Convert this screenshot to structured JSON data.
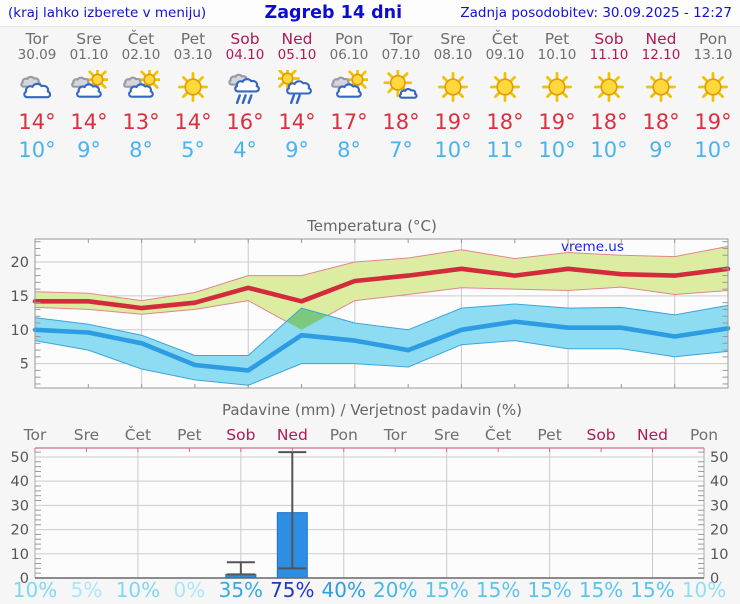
{
  "header": {
    "note": "(kraj lahko izberete v meniju)",
    "title": "Zagreb 14 dni",
    "updated": "Zadnja posodobitev: 30.09.2025 - 12:27"
  },
  "watermark": "vreme.us",
  "colors": {
    "weekend": "#ae1a56",
    "weekday": "#6e6e6e",
    "tmax_text": "#dc2f3e",
    "tmin_text": "#49b3ef",
    "header_blue": "#1212cf",
    "tmax_line": "#d42b3c",
    "tmin_line": "#2d9ce2",
    "tmax_band": "#dceda2",
    "tmin_band": "#8edcf2",
    "band_overlap": "#7cc87c",
    "bar_fill": "#2e8ee3",
    "grid": "#cbcbcb",
    "axis_text": "#555555",
    "precip_top_border": "#cc7088"
  },
  "days": [
    {
      "name": "Tor",
      "date": "30.09",
      "weekend": false,
      "icon": "cloudy",
      "tmax": 14,
      "tmin": 10,
      "prob": 10,
      "prob_color": "#7ed8f3"
    },
    {
      "name": "Sre",
      "date": "01.10",
      "weekend": false,
      "icon": "sun-cloud",
      "tmax": 14,
      "tmin": 9,
      "prob": 5,
      "prob_color": "#a9e7f8"
    },
    {
      "name": "Čet",
      "date": "02.10",
      "weekend": false,
      "icon": "sun-cloud",
      "tmax": 13,
      "tmin": 8,
      "prob": 10,
      "prob_color": "#7ed8f3"
    },
    {
      "name": "Pet",
      "date": "03.10",
      "weekend": false,
      "icon": "sunny",
      "tmax": 14,
      "tmin": 5,
      "prob": 0,
      "prob_color": "#a9e7f8"
    },
    {
      "name": "Sob",
      "date": "04.10",
      "weekend": true,
      "icon": "rain",
      "tmax": 16,
      "tmin": 4,
      "prob": 35,
      "prob_color": "#35a9e5"
    },
    {
      "name": "Ned",
      "date": "05.10",
      "weekend": true,
      "icon": "sun-rain",
      "tmax": 14,
      "tmin": 9,
      "prob": 75,
      "prob_color": "#2137c6"
    },
    {
      "name": "Pon",
      "date": "06.10",
      "weekend": false,
      "icon": "sun-cloud",
      "tmax": 17,
      "tmin": 8,
      "prob": 40,
      "prob_color": "#2d9ee2"
    },
    {
      "name": "Tor",
      "date": "07.10",
      "weekend": false,
      "icon": "sun-small-cloud",
      "tmax": 18,
      "tmin": 7,
      "prob": 20,
      "prob_color": "#45b9eb"
    },
    {
      "name": "Sre",
      "date": "08.10",
      "weekend": false,
      "icon": "sunny",
      "tmax": 19,
      "tmin": 10,
      "prob": 15,
      "prob_color": "#58c5ef"
    },
    {
      "name": "Čet",
      "date": "09.10",
      "weekend": false,
      "icon": "sunny",
      "tmax": 18,
      "tmin": 11,
      "prob": 15,
      "prob_color": "#58c5ef"
    },
    {
      "name": "Pet",
      "date": "10.10",
      "weekend": false,
      "icon": "sunny",
      "tmax": 19,
      "tmin": 10,
      "prob": 15,
      "prob_color": "#58c5ef"
    },
    {
      "name": "Sob",
      "date": "11.10",
      "weekend": true,
      "icon": "sunny",
      "tmax": 18,
      "tmin": 10,
      "prob": 15,
      "prob_color": "#58c5ef"
    },
    {
      "name": "Ned",
      "date": "12.10",
      "weekend": true,
      "icon": "sunny",
      "tmax": 18,
      "tmin": 9,
      "prob": 15,
      "prob_color": "#58c5ef"
    },
    {
      "name": "Pon",
      "date": "13.10",
      "weekend": false,
      "icon": "sunny",
      "tmax": 19,
      "tmin": 10,
      "prob": 10,
      "prob_color": "#8fdff5"
    }
  ],
  "chart_data": [
    {
      "type": "line",
      "title": "Temperatura (°C)",
      "ylim": [
        1.4,
        23.4
      ],
      "yticks": [
        5,
        10,
        15,
        20
      ],
      "grid": true,
      "legend": "none",
      "categories": [
        "Tor 30.09",
        "Sre 01.10",
        "Čet 02.10",
        "Pet 03.10",
        "Sob 04.10",
        "Ned 05.10",
        "Pon 06.10",
        "Tor 07.10",
        "Sre 08.10",
        "Čet 09.10",
        "Pet 10.10",
        "Sob 11.10",
        "Ned 12.10",
        "Pon 13.10"
      ],
      "series": [
        {
          "name": "tmax",
          "color": "#d42b3c",
          "values": [
            14.2,
            14.2,
            13.2,
            14,
            16.2,
            14.2,
            17.2,
            18,
            19,
            18,
            19,
            18.2,
            18,
            19
          ]
        },
        {
          "name": "tmax_range_upper",
          "color": "#dceda2",
          "values": [
            15.6,
            15.4,
            14.3,
            15.5,
            18,
            18,
            20,
            20.6,
            21.8,
            20.5,
            21.4,
            21,
            20.8,
            22.3
          ]
        },
        {
          "name": "tmax_range_lower",
          "color": "#dceda2",
          "values": [
            13.3,
            13,
            12.3,
            13,
            14.3,
            10,
            14.3,
            15.2,
            16.2,
            16,
            15.8,
            16.3,
            15.2,
            15.8
          ]
        },
        {
          "name": "tmin",
          "color": "#2d9ce2",
          "values": [
            10,
            9.6,
            8,
            4.8,
            4,
            9.2,
            8.4,
            7,
            10,
            11.2,
            10.3,
            10.3,
            9,
            10.2
          ]
        },
        {
          "name": "tmin_range_upper",
          "color": "#8edcf2",
          "values": [
            11.8,
            10.8,
            9.2,
            6.2,
            6.2,
            13.2,
            11,
            10,
            13.2,
            13.8,
            13.2,
            13.3,
            12.2,
            13.6
          ]
        },
        {
          "name": "tmin_range_lower",
          "color": "#8edcf2",
          "values": [
            8.4,
            7,
            4.2,
            2.6,
            1.8,
            5,
            5,
            4.5,
            7.8,
            8.4,
            7.2,
            7.2,
            6,
            6.8
          ]
        }
      ]
    },
    {
      "type": "bar",
      "title": "Padavine (mm) / Verjetnost padavin (%)",
      "ylim": [
        0,
        53.7
      ],
      "yticks": [
        0,
        10,
        20,
        30,
        40,
        50
      ],
      "grid": true,
      "categories": [
        "Tor 30.09",
        "Sre 01.10",
        "Čet 02.10",
        "Pet 03.10",
        "Sob 04.10",
        "Ned 05.10",
        "Pon 06.10",
        "Tor 07.10",
        "Sre 08.10",
        "Čet 09.10",
        "Pet 10.10",
        "Sob 11.10",
        "Ned 12.10",
        "Pon 13.10"
      ],
      "bars_mm": [
        0,
        0,
        0,
        0,
        1.5,
        27,
        0,
        0,
        0,
        0,
        0,
        0,
        0,
        0
      ],
      "whisker_low": [
        null,
        null,
        null,
        null,
        1.5,
        4,
        null,
        null,
        null,
        null,
        null,
        null,
        null,
        null
      ],
      "whisker_high": [
        null,
        null,
        null,
        null,
        6.5,
        52,
        null,
        null,
        null,
        null,
        null,
        null,
        null,
        null
      ],
      "probabilities_pct": [
        10,
        5,
        10,
        0,
        35,
        75,
        40,
        20,
        15,
        15,
        15,
        15,
        15,
        10
      ]
    }
  ]
}
